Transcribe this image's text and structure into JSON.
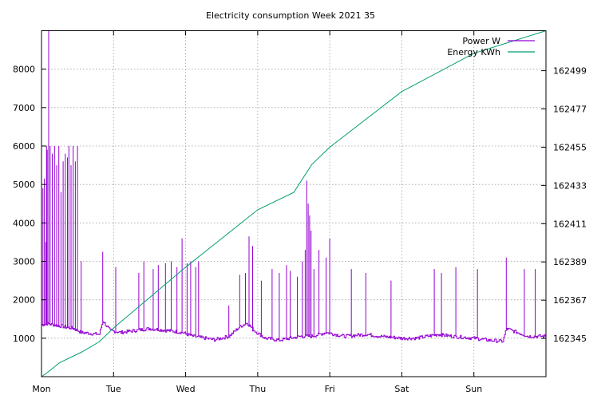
{
  "chart_data": {
    "type": "line",
    "title": "Electricity consumption Week 2021 35",
    "xlabel": "",
    "ylabel": "",
    "x_ticks": [
      "Mon",
      "Tue",
      "Wed",
      "Thu",
      "Fri",
      "Sat",
      "Sun"
    ],
    "x_range_days": [
      0,
      7
    ],
    "y_left": {
      "range": [
        0,
        9000
      ],
      "ticks": [
        1000,
        2000,
        3000,
        4000,
        5000,
        6000,
        7000,
        8000
      ]
    },
    "y_right": {
      "range": [
        162323,
        162522
      ],
      "ticks": [
        162345,
        162367,
        162389,
        162411,
        162433,
        162455,
        162477,
        162499
      ]
    },
    "grid": true,
    "legend": {
      "position": "top-right"
    },
    "series": [
      {
        "name": "Power W",
        "axis": "left",
        "color": "#9400d3",
        "baseline_points": [
          [
            0.0,
            1350
          ],
          [
            0.08,
            1380
          ],
          [
            0.25,
            1320
          ],
          [
            0.45,
            1250
          ],
          [
            0.55,
            1150
          ],
          [
            0.8,
            1100
          ],
          [
            0.85,
            1450
          ],
          [
            0.95,
            1200
          ],
          [
            1.1,
            1150
          ],
          [
            1.3,
            1200
          ],
          [
            1.5,
            1250
          ],
          [
            1.75,
            1200
          ],
          [
            1.95,
            1150
          ],
          [
            2.1,
            1050
          ],
          [
            2.4,
            960
          ],
          [
            2.6,
            1050
          ],
          [
            2.75,
            1300
          ],
          [
            2.85,
            1400
          ],
          [
            2.95,
            1200
          ],
          [
            3.1,
            1000
          ],
          [
            3.3,
            950
          ],
          [
            3.45,
            1000
          ],
          [
            3.6,
            1050
          ],
          [
            3.75,
            1050
          ],
          [
            3.95,
            1150
          ],
          [
            4.2,
            1050
          ],
          [
            4.5,
            1100
          ],
          [
            4.7,
            1050
          ],
          [
            5.0,
            1000
          ],
          [
            5.2,
            1000
          ],
          [
            5.5,
            1100
          ],
          [
            5.7,
            1050
          ],
          [
            6.0,
            1000
          ],
          [
            6.2,
            950
          ],
          [
            6.4,
            920
          ],
          [
            6.45,
            1250
          ],
          [
            6.6,
            1150
          ],
          [
            6.75,
            1050
          ],
          [
            7.0,
            1050
          ]
        ],
        "spikes": [
          [
            0.02,
            4900
          ],
          [
            0.04,
            5150
          ],
          [
            0.06,
            3500
          ],
          [
            0.07,
            6000
          ],
          [
            0.08,
            5900
          ],
          [
            0.1,
            9000
          ],
          [
            0.12,
            6000
          ],
          [
            0.15,
            5800
          ],
          [
            0.18,
            6000
          ],
          [
            0.21,
            5500
          ],
          [
            0.24,
            6000
          ],
          [
            0.27,
            4800
          ],
          [
            0.3,
            5600
          ],
          [
            0.33,
            5800
          ],
          [
            0.36,
            5700
          ],
          [
            0.38,
            6000
          ],
          [
            0.41,
            5500
          ],
          [
            0.44,
            6000
          ],
          [
            0.47,
            5600
          ],
          [
            0.5,
            6000
          ],
          [
            0.55,
            3000
          ],
          [
            0.85,
            3250
          ],
          [
            1.03,
            2850
          ],
          [
            1.35,
            2700
          ],
          [
            1.42,
            3000
          ],
          [
            1.55,
            2800
          ],
          [
            1.62,
            2900
          ],
          [
            1.72,
            2950
          ],
          [
            1.8,
            3000
          ],
          [
            1.88,
            2850
          ],
          [
            1.95,
            3600
          ],
          [
            2.02,
            2950
          ],
          [
            2.07,
            3000
          ],
          [
            2.14,
            2850
          ],
          [
            2.18,
            3000
          ],
          [
            2.6,
            1850
          ],
          [
            2.75,
            2650
          ],
          [
            2.83,
            2700
          ],
          [
            2.88,
            3650
          ],
          [
            2.93,
            3400
          ],
          [
            3.05,
            2500
          ],
          [
            3.2,
            2800
          ],
          [
            3.3,
            2700
          ],
          [
            3.4,
            2900
          ],
          [
            3.45,
            2750
          ],
          [
            3.55,
            2600
          ],
          [
            3.62,
            3000
          ],
          [
            3.66,
            3300
          ],
          [
            3.68,
            5100
          ],
          [
            3.7,
            4500
          ],
          [
            3.72,
            4200
          ],
          [
            3.74,
            3800
          ],
          [
            3.78,
            2800
          ],
          [
            3.85,
            3300
          ],
          [
            3.95,
            3100
          ],
          [
            4.0,
            3600
          ],
          [
            4.3,
            2800
          ],
          [
            4.5,
            2700
          ],
          [
            4.85,
            2500
          ],
          [
            5.45,
            2800
          ],
          [
            5.55,
            2700
          ],
          [
            5.75,
            2850
          ],
          [
            6.05,
            2800
          ],
          [
            6.45,
            3100
          ],
          [
            6.7,
            2800
          ],
          [
            6.85,
            2800
          ]
        ]
      },
      {
        "name": "Energy KWh",
        "axis": "right",
        "color": "#009e73",
        "points": [
          [
            0.0,
            162323
          ],
          [
            0.1,
            162326
          ],
          [
            0.25,
            162331
          ],
          [
            0.55,
            162337
          ],
          [
            0.8,
            162343
          ],
          [
            1.0,
            162351
          ],
          [
            2.0,
            162386
          ],
          [
            3.0,
            162419
          ],
          [
            3.5,
            162429
          ],
          [
            3.75,
            162445
          ],
          [
            4.0,
            162455
          ],
          [
            5.0,
            162487
          ],
          [
            6.0,
            162509
          ],
          [
            7.0,
            162522
          ]
        ]
      }
    ]
  }
}
